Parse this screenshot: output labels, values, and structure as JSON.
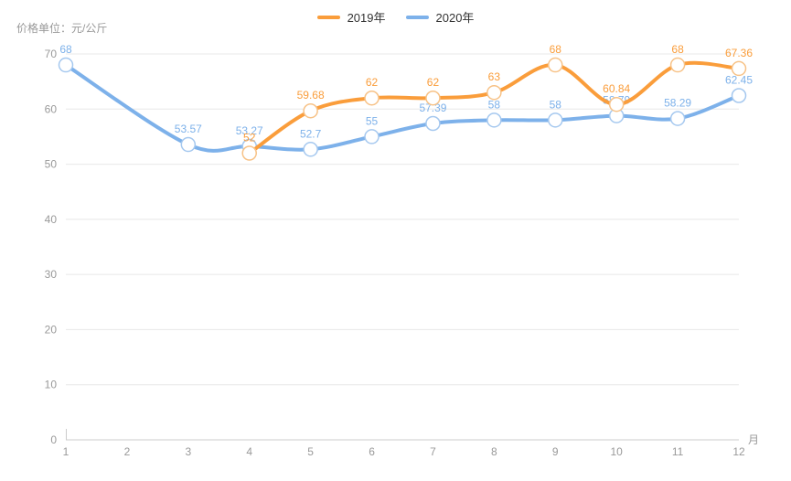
{
  "chart_data": {
    "type": "line",
    "smooth": true,
    "x": [
      1,
      2,
      3,
      4,
      5,
      6,
      7,
      8,
      9,
      10,
      11,
      12
    ],
    "xlabel": "月",
    "ylabel": "价格单位：元/公斤",
    "ylim": [
      0,
      70
    ],
    "y_ticks": [
      0,
      10,
      20,
      30,
      40,
      50,
      60,
      70
    ],
    "grid": "horizontal",
    "legend_position": "top-center",
    "series": [
      {
        "name": "2019年",
        "color": "#fa9d3b",
        "marker_color": "#f7c287",
        "values": [
          null,
          null,
          null,
          52,
          59.68,
          62,
          62,
          63,
          68,
          60.84,
          68,
          67.36
        ]
      },
      {
        "name": "2020年",
        "color": "#7db1ea",
        "marker_color": "#a5c8ef",
        "values": [
          68,
          null,
          53.57,
          53.27,
          52.7,
          55,
          57.39,
          58,
          58,
          58.79,
          58.29,
          62.45
        ]
      }
    ],
    "colors": {
      "axis_text": "#999999",
      "legend_text": "#333333",
      "gridline": "#e8e8e8",
      "axis_line": "#cccccc",
      "marker_fill": "#ffffff"
    }
  }
}
